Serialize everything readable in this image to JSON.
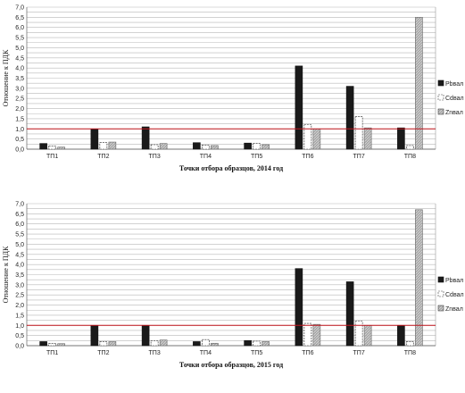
{
  "colors": {
    "pb": "#1a1a1a",
    "cd": "#ffffff",
    "zn": "#a6a6a6",
    "threshold": "#c0141c",
    "grid": "#b8b8b8"
  },
  "chart_data": [
    {
      "type": "bar",
      "xlabel": "Точки отбора образцов, 2014 год",
      "ylabel": "Отношение к ПДК",
      "ylim": [
        0,
        7
      ],
      "ytick_step": 0.25,
      "ytick_labels": [
        "0,0",
        "0,5",
        "1,0",
        "1,5",
        "2,0",
        "2,5",
        "3,0",
        "3,5",
        "4,0",
        "4,5",
        "5,0",
        "5,5",
        "6,0",
        "6,5",
        "7,0"
      ],
      "categories": [
        "ТП1",
        "ТП2",
        "ТП3",
        "ТП4",
        "ТП5",
        "ТП6",
        "ТП7",
        "ТП8"
      ],
      "series": [
        {
          "name": "Pbвал",
          "key": "pb",
          "values": [
            0.28,
            0.98,
            1.1,
            0.32,
            0.3,
            4.1,
            3.1,
            1.05
          ]
        },
        {
          "name": "Cdвал",
          "key": "cd",
          "values": [
            0.15,
            0.32,
            0.22,
            0.2,
            0.28,
            1.2,
            1.6,
            0.18
          ]
        },
        {
          "name": "Znвал",
          "key": "zn",
          "values": [
            0.1,
            0.35,
            0.28,
            0.18,
            0.22,
            1.0,
            1.05,
            6.5
          ]
        }
      ],
      "threshold": 1.0,
      "grid": true,
      "legend_position": "right"
    },
    {
      "type": "bar",
      "xlabel": "Точки отбора образцов, 2015 год",
      "ylabel": "Отношение к ПДК",
      "ylim": [
        0,
        7
      ],
      "ytick_step": 0.25,
      "ytick_labels": [
        "0,0",
        "0,5",
        "1,0",
        "1,5",
        "2,0",
        "2,5",
        "3,0",
        "3,5",
        "4,0",
        "4,5",
        "5,0",
        "5,5",
        "6,0",
        "6,5",
        "7,0"
      ],
      "categories": [
        "ТП1",
        "ТП2",
        "ТП3",
        "ТП4",
        "ТП5",
        "ТП6",
        "ТП7",
        "ТП8"
      ],
      "series": [
        {
          "name": "Pbвал",
          "key": "pb",
          "values": [
            0.2,
            1.0,
            1.0,
            0.2,
            0.25,
            3.8,
            3.15,
            1.0
          ]
        },
        {
          "name": "Cdвал",
          "key": "cd",
          "values": [
            0.12,
            0.2,
            0.25,
            0.3,
            0.22,
            1.1,
            1.2,
            0.2
          ]
        },
        {
          "name": "Znвал",
          "key": "zn",
          "values": [
            0.1,
            0.2,
            0.28,
            0.12,
            0.2,
            1.05,
            1.0,
            6.7
          ]
        }
      ],
      "threshold": 1.0,
      "grid": true,
      "legend_position": "right"
    }
  ]
}
